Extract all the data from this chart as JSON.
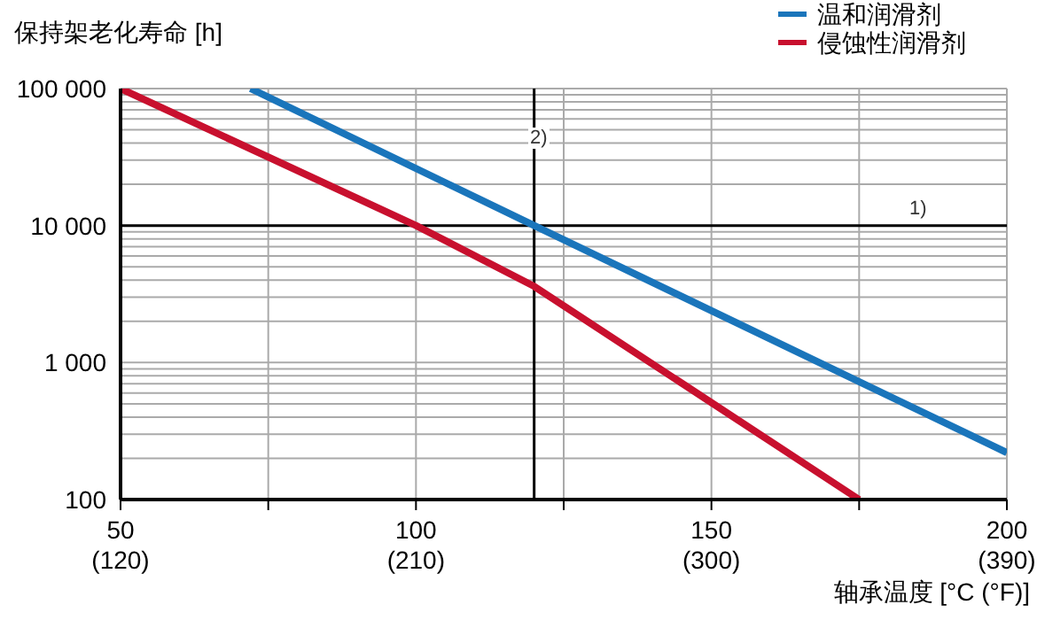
{
  "chart_data": {
    "type": "line",
    "ylabel": "保持架老化寿命 [h]",
    "xlabel": "轴承温度  [°C (°F)]",
    "log": "y",
    "grid": true,
    "legend": "top right",
    "xlim": [
      50,
      200
    ],
    "xticks": [
      50,
      {
        "value": 75,
        "label": null
      },
      100,
      {
        "value": 125,
        "label": null
      },
      150,
      {
        "value": 175,
        "label": null
      },
      200
    ],
    "x2lim": [
      120,
      390
    ],
    "x2ticks": [
      {
        "value": 120,
        "label": "(120)"
      },
      {
        "value": 210,
        "label": "(210)"
      },
      {
        "value": 300,
        "label": "(300)"
      },
      {
        "value": 390,
        "label": "(390)"
      }
    ],
    "ylim": [
      100,
      100000
    ],
    "yticks": [
      100,
      {
        "value": 200,
        "label": null
      },
      {
        "value": 300,
        "label": null
      },
      {
        "value": 400,
        "label": null
      },
      {
        "value": 500,
        "label": null
      },
      {
        "value": 600,
        "label": null
      },
      {
        "value": 700,
        "label": null
      },
      {
        "value": 800,
        "label": null
      },
      {
        "value": 900,
        "label": null
      },
      {
        "value": 1000,
        "label": "1 000"
      },
      {
        "value": 2000,
        "label": null
      },
      {
        "value": 3000,
        "label": null
      },
      {
        "value": 4000,
        "label": null
      },
      {
        "value": 5000,
        "label": null
      },
      {
        "value": 6000,
        "label": null
      },
      {
        "value": 7000,
        "label": null
      },
      {
        "value": 8000,
        "label": null
      },
      {
        "value": 9000,
        "label": null
      },
      {
        "value": 10000,
        "label": "10 000"
      },
      {
        "value": 20000,
        "label": null
      },
      {
        "value": 30000,
        "label": null
      },
      {
        "value": 40000,
        "label": null
      },
      {
        "value": 50000,
        "label": null
      },
      {
        "value": 60000,
        "label": null
      },
      {
        "value": 70000,
        "label": null
      },
      {
        "value": 80000,
        "label": null
      },
      {
        "value": 90000,
        "label": null
      },
      {
        "value": 100000,
        "label": "100 000"
      }
    ],
    "series": [
      {
        "name": "温和润滑剂",
        "color": "#1a75bb",
        "x": [
          72,
          120,
          200
        ],
        "values": [
          100000,
          10000,
          220
        ]
      },
      {
        "name": "侵蚀性润滑剂",
        "color": "#c8102e",
        "x": [
          50,
          100,
          120,
          175
        ],
        "values": [
          100000,
          10000,
          3600,
          100
        ]
      }
    ],
    "ref_lines": [
      {
        "axis": "x",
        "value": 120,
        "color": "#000000"
      },
      {
        "axis": "y",
        "value": 10000,
        "color": "#000000"
      }
    ],
    "annotations": [
      "2)",
      "1)"
    ]
  }
}
